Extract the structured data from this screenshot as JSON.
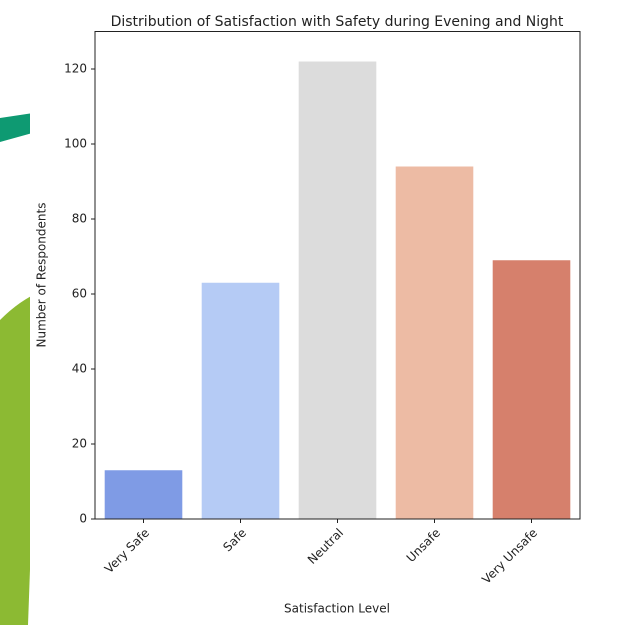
{
  "chart_data": {
    "type": "bar",
    "title": "Distribution of Satisfaction with Safety during Evening and Night",
    "x_label": "Satisfaction Level",
    "y_label": "Number of Respondents",
    "categories": [
      "Very Safe",
      "Safe",
      "Neutral",
      "Unsafe",
      "Very Unsafe"
    ],
    "values": [
      13,
      63,
      122,
      94,
      69
    ],
    "colors": [
      "#7f9be5",
      "#b5cbf5",
      "#dcdcdc",
      "#edbba4",
      "#d6806c"
    ],
    "ylim": [
      0,
      130
    ],
    "yticks": [
      0,
      20,
      40,
      60,
      80,
      100,
      120
    ]
  }
}
